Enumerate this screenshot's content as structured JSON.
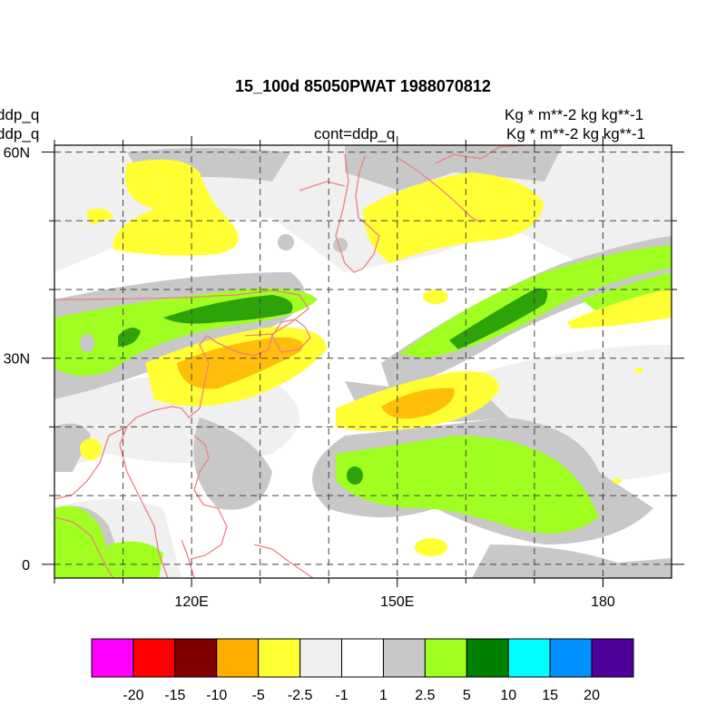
{
  "header": {
    "title": "15_100d 85050PWAT  1988070812",
    "left_label_1": "ddp_q",
    "left_label_2": "ddp_q",
    "center_label": "cont=ddp_q",
    "right_label_1": "Kg  * m**-2 kg kg**-1",
    "right_label_2": "Kg  * m**-2 kg kg**-1"
  },
  "colors": {
    "land_outline": "#f08080",
    "grid": "#444444",
    "frame": "#000000"
  },
  "chart_data": {
    "type": "heatmap",
    "title": "15_100d 85050PWAT  1988070812",
    "x_axis": {
      "range": [
        100,
        190
      ],
      "ticks": [
        {
          "value": 120,
          "label": "120E"
        },
        {
          "value": 150,
          "label": "150E"
        },
        {
          "value": 180,
          "label": "180"
        }
      ],
      "minor_ticks": [
        100,
        110,
        130,
        140,
        160,
        170,
        180
      ]
    },
    "y_axis": {
      "range": [
        -2,
        61
      ],
      "ticks": [
        {
          "value": 0,
          "label": "0"
        },
        {
          "value": 30,
          "label": "30N"
        },
        {
          "value": 60,
          "label": "60N"
        }
      ],
      "minor_ticks": [
        10,
        20,
        40,
        50
      ]
    },
    "grid": "dashed",
    "contour_levels": [
      "-20",
      "-15",
      "-10",
      "-5",
      "-2.5",
      "-1",
      "1",
      "2.5",
      "5",
      "10",
      "15",
      "20"
    ],
    "legend_colors": [
      "#ff00ff",
      "#ff0000",
      "#800000",
      "#ffae00",
      "#ffff33",
      "#f0f0f0",
      "#ffffff",
      "#c8c8c8",
      "#a0ff20",
      "#008000",
      "#00ffff",
      "#0090ff",
      "#50009a"
    ],
    "legend_position": "bottom"
  }
}
